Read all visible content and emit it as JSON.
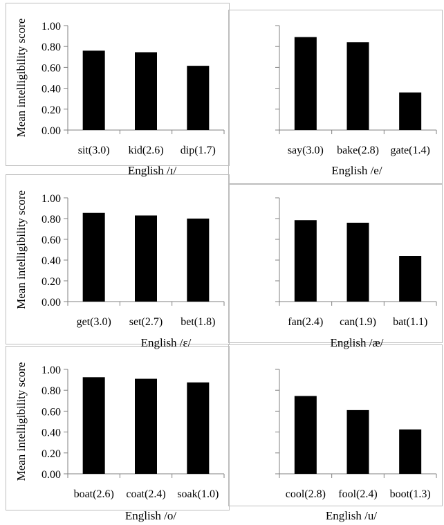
{
  "y_axis_label": "Mean intelligibility score",
  "chart_data": [
    {
      "type": "bar",
      "xlabel": "English /ɪ/",
      "ylabel": "Mean intelligibility score",
      "ylim": [
        0,
        1
      ],
      "yticks": [
        "0.00",
        "0.20",
        "0.40",
        "0.60",
        "0.80",
        "1.00"
      ],
      "categories": [
        "sit(3.0)",
        "kid(2.6)",
        "dip(1.7)"
      ],
      "values": [
        0.76,
        0.745,
        0.615
      ],
      "grid": false,
      "legend": "none"
    },
    {
      "type": "bar",
      "xlabel": "English /e/",
      "ylabel": "",
      "ylim": [
        0,
        1
      ],
      "yticks": [],
      "categories": [
        "say(3.0)",
        "bake(2.8)",
        "gate(1.4)"
      ],
      "values": [
        0.89,
        0.84,
        0.36
      ],
      "grid": false,
      "legend": "none"
    },
    {
      "type": "bar",
      "xlabel": "English /ɛ/",
      "ylabel": "Mean intelligibility score",
      "ylim": [
        0,
        1
      ],
      "yticks": [
        "0.00",
        "0.20",
        "0.40",
        "0.60",
        "0.80",
        "1.00"
      ],
      "categories": [
        "get(3.0)",
        "set(2.7)",
        "bet(1.8)"
      ],
      "values": [
        0.855,
        0.83,
        0.8
      ],
      "grid": false,
      "legend": "none"
    },
    {
      "type": "bar",
      "xlabel": "English /æ/",
      "ylabel": "",
      "ylim": [
        0,
        1
      ],
      "yticks": [],
      "categories": [
        "fan(2.4)",
        "can(1.9)",
        "bat(1.1)"
      ],
      "values": [
        0.785,
        0.76,
        0.44
      ],
      "grid": false,
      "legend": "none"
    },
    {
      "type": "bar",
      "xlabel": "English /o/",
      "ylabel": "Mean intelligibility score",
      "ylim": [
        0,
        1
      ],
      "yticks": [
        "0.00",
        "0.20",
        "0.40",
        "0.60",
        "0.80",
        "1.00"
      ],
      "categories": [
        "boat(2.6)",
        "coat(2.4)",
        "soak(1.0)"
      ],
      "values": [
        0.925,
        0.91,
        0.875
      ],
      "grid": false,
      "legend": "none"
    },
    {
      "type": "bar",
      "xlabel": "English /u/",
      "ylabel": "",
      "ylim": [
        0,
        1
      ],
      "yticks": [],
      "categories": [
        "cool(2.8)",
        "fool(2.4)",
        "boot(1.3)"
      ],
      "values": [
        0.745,
        0.61,
        0.425
      ],
      "grid": false,
      "legend": "none"
    }
  ]
}
